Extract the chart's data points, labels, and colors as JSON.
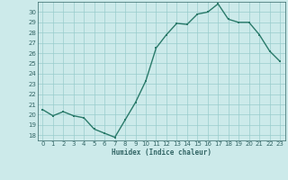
{
  "x": [
    0,
    1,
    2,
    3,
    4,
    5,
    6,
    7,
    8,
    9,
    10,
    11,
    12,
    13,
    14,
    15,
    16,
    17,
    18,
    19,
    20,
    21,
    22,
    23
  ],
  "y": [
    20.5,
    19.9,
    20.3,
    19.9,
    19.7,
    18.6,
    18.2,
    17.8,
    19.5,
    21.2,
    23.3,
    26.5,
    27.8,
    28.9,
    28.8,
    29.8,
    30.0,
    30.8,
    29.3,
    29.0,
    29.0,
    27.8,
    26.2,
    25.2
  ],
  "xlabel": "Humidex (Indice chaleur)",
  "ylim": [
    17.5,
    31
  ],
  "xlim": [
    -0.5,
    23.5
  ],
  "yticks": [
    18,
    19,
    20,
    21,
    22,
    23,
    24,
    25,
    26,
    27,
    28,
    29,
    30
  ],
  "xticks": [
    0,
    1,
    2,
    3,
    4,
    5,
    6,
    7,
    8,
    9,
    10,
    11,
    12,
    13,
    14,
    15,
    16,
    17,
    18,
    19,
    20,
    21,
    22,
    23
  ],
  "line_color": "#2a7a6a",
  "marker_color": "#2a7a6a",
  "bg_color": "#cceaea",
  "grid_color": "#99cccc",
  "tick_label_color": "#336666",
  "xlabel_color": "#336666",
  "markersize": 2.0,
  "linewidth": 1.0
}
